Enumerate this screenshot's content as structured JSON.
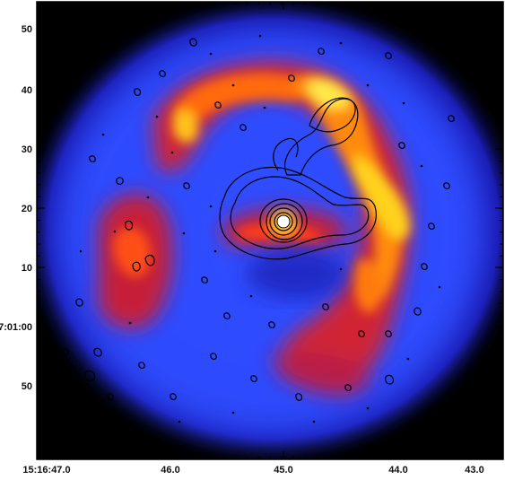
{
  "image": {
    "kind": "astronomical false-color X-ray image with black contour overlay",
    "colormap": [
      "#000000",
      "#1a1aa8",
      "#2f4cff",
      "#d8202a",
      "#ff5a12",
      "#ffb000",
      "#ffff6a",
      "#ffffff"
    ],
    "background": "#000000",
    "contour_color": "#000000"
  },
  "axes": {
    "x_ticks": [
      "15:16:47.0",
      "46.0",
      "45.0",
      "44.0",
      "43.0"
    ],
    "y_ticks": [
      "50",
      "40",
      "30",
      "20",
      "10",
      "7:01:00",
      "50"
    ]
  }
}
